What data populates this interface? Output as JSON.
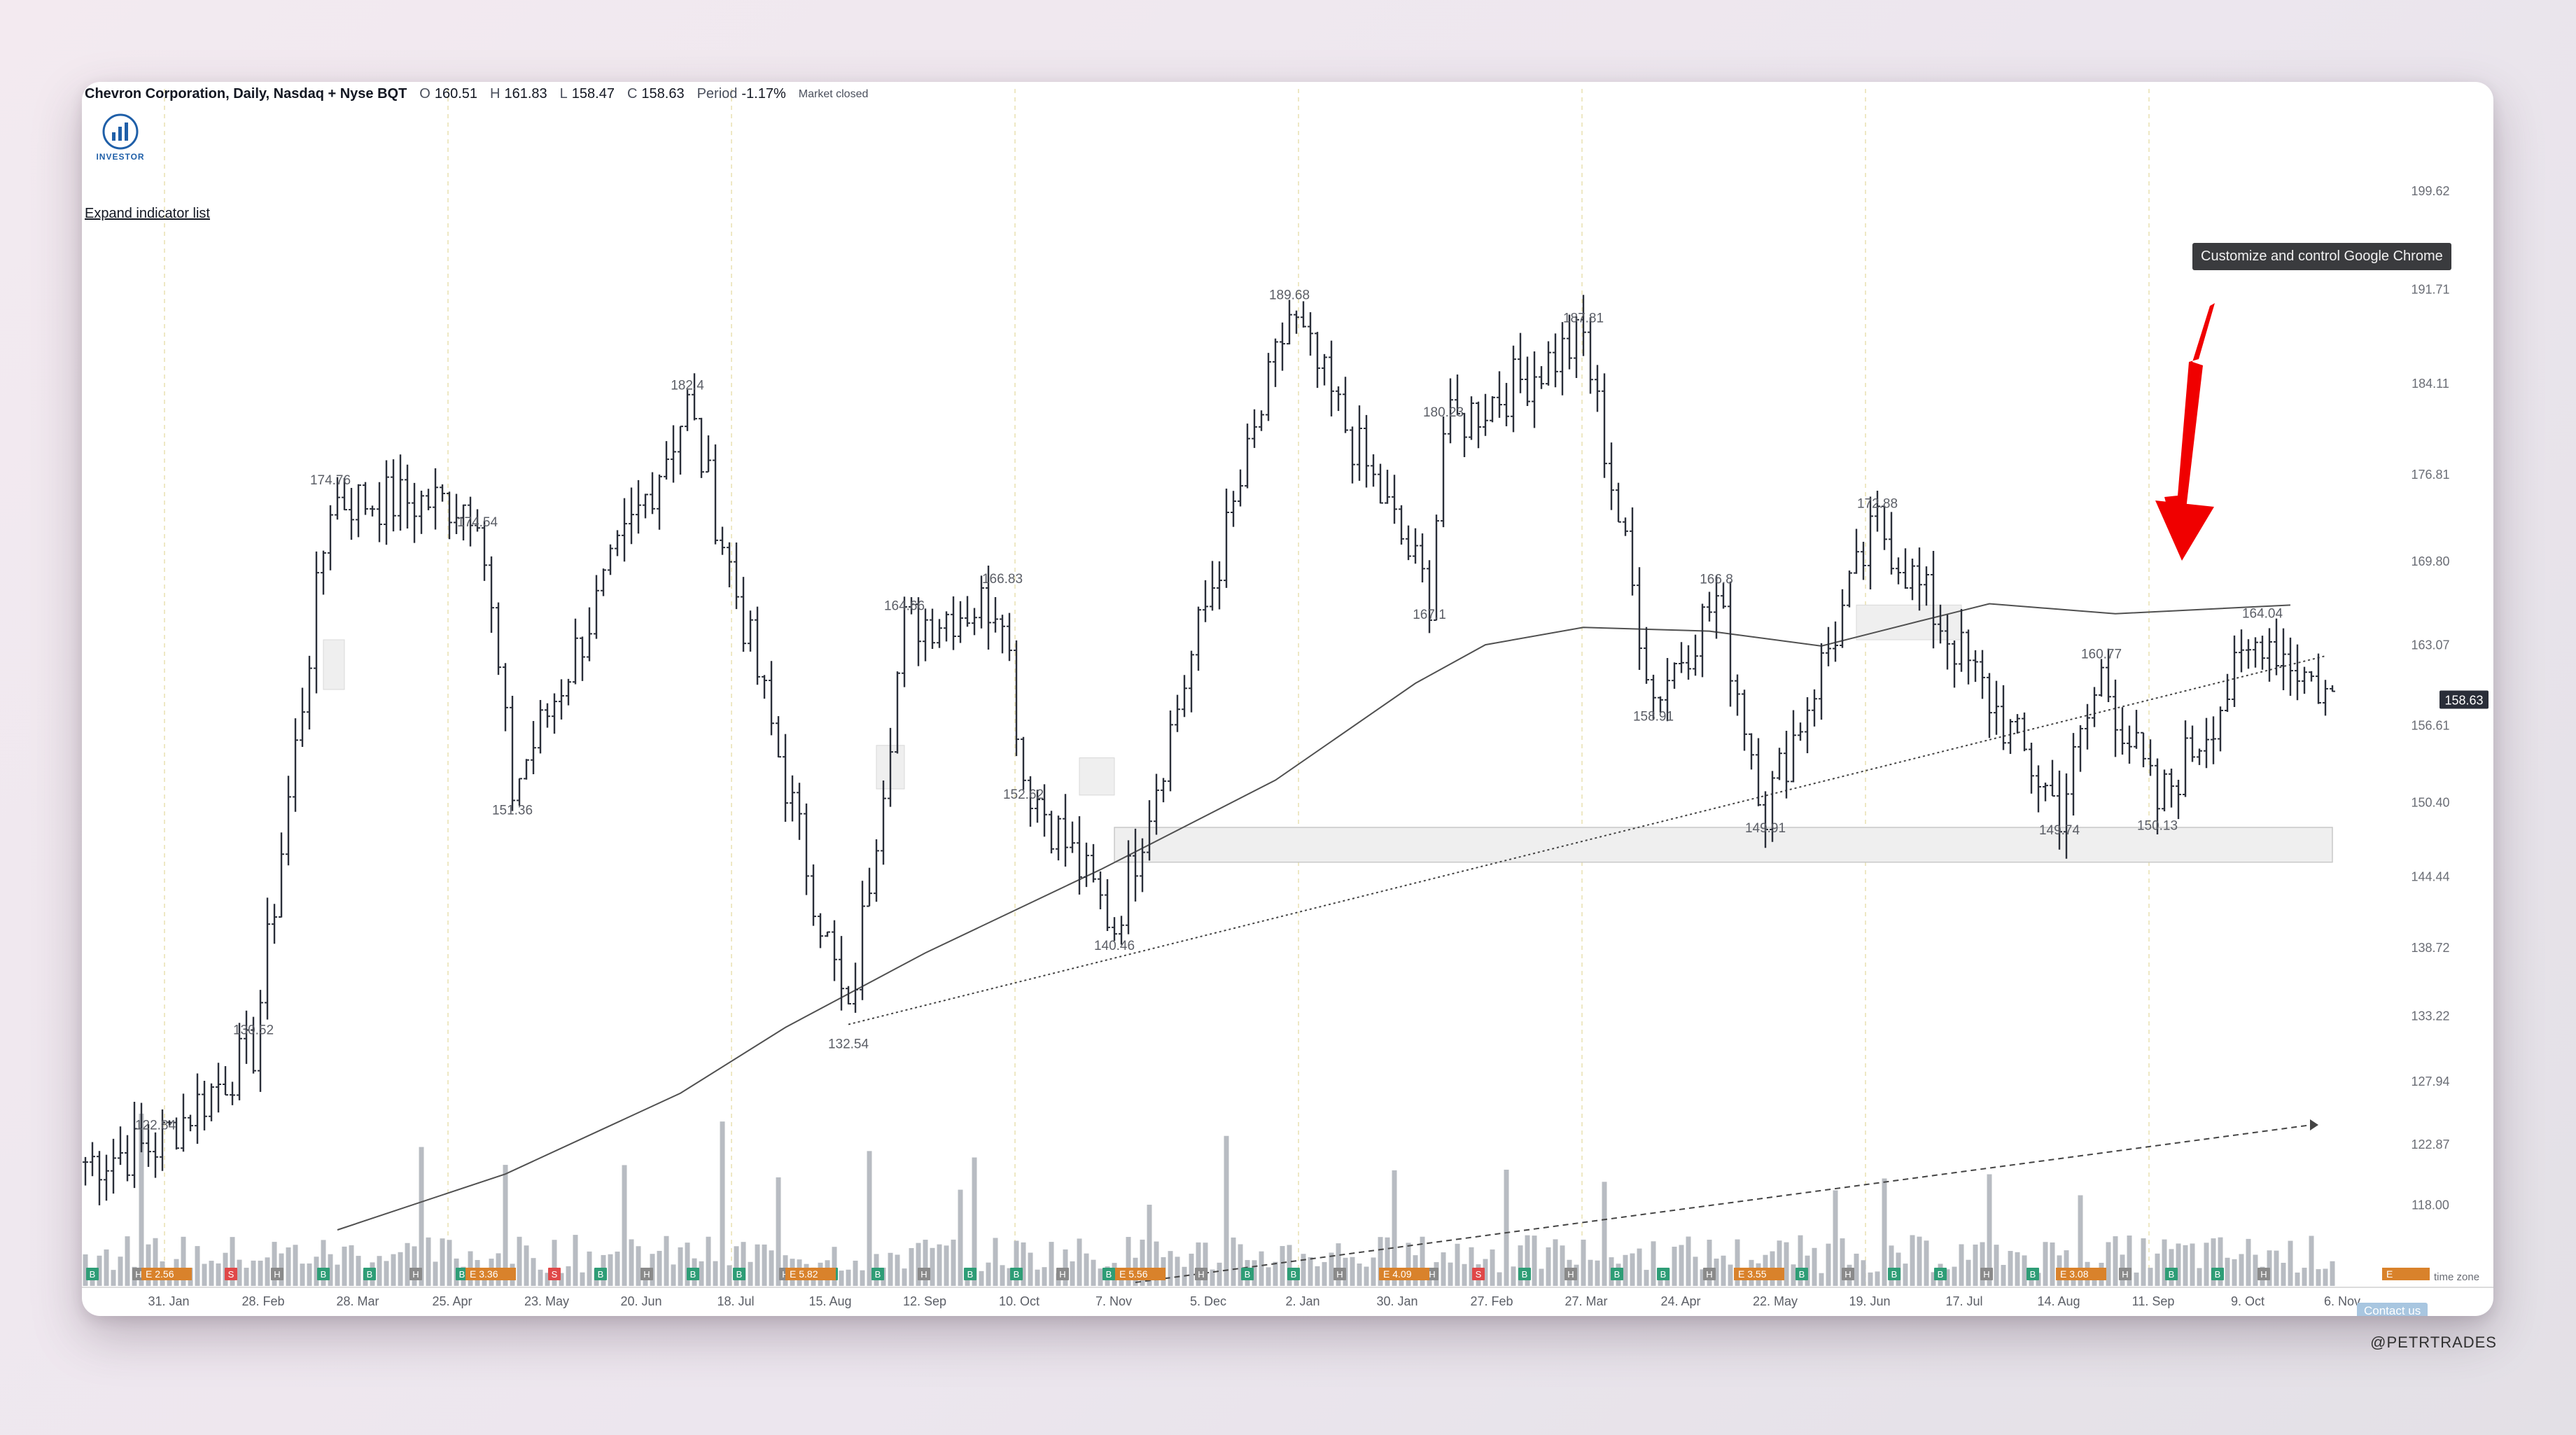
{
  "header": {
    "symbol": "Chevron Corporation, Daily, Nasdaq + Nyse BQT",
    "open_label": "O",
    "open": "160.51",
    "high_label": "H",
    "high": "161.83",
    "low_label": "L",
    "low": "158.47",
    "close_label": "C",
    "close": "158.63",
    "period_label": "Period",
    "period_change": "-1.17%",
    "market_status": "Market closed"
  },
  "logo_text": "INVESTOR",
  "expand_indicator_label": "Expand indicator list",
  "tooltip_text": "Customize and control Google Chrome",
  "contact_label": "Contact us",
  "watermark": "@PETRTRADES",
  "time_zone_label": "time zone",
  "colors": {
    "bar": "#2a2e39",
    "volume": "#b8bcc2",
    "ma_line": "#505050",
    "highlight_box": "#efefef",
    "arrow": "#f00000",
    "badge_h": "#8a8a8a",
    "badge_b": "#2e9d76",
    "badge_s": "#e04848",
    "badge_e": "#d9822b",
    "price_tag": "#2a2e39"
  },
  "chart_data": {
    "type": "ohlc",
    "title": "Chevron Corporation, Daily, Nasdaq + Nyse BQT",
    "ylim": [
      116.0,
      203.0
    ],
    "price_ticks": [
      "199.62",
      "191.71",
      "184.11",
      "176.81",
      "169.80",
      "163.07",
      "156.61",
      "150.40",
      "144.44",
      "138.72",
      "133.22",
      "127.94",
      "122.87",
      "118.00"
    ],
    "last_price": "158.63",
    "x_labels": [
      "31. Jan",
      "28. Feb",
      "28. Mar",
      "25. Apr",
      "23. May",
      "20. Jun",
      "18. Jul",
      "15. Aug",
      "12. Sep",
      "10. Oct",
      "7. Nov",
      "5. Dec",
      "2. Jan",
      "30. Jan",
      "27. Feb",
      "27. Mar",
      "24. Apr",
      "22. May",
      "19. Jun",
      "17. Jul",
      "14. Aug",
      "11. Sep",
      "9. Oct",
      "6. Nov"
    ],
    "swing_points": [
      {
        "index": 10,
        "value": 122.84
      },
      {
        "index": 24,
        "value": 130.52
      },
      {
        "index": 35,
        "value": 174.76
      },
      {
        "index": 61,
        "value": 151.36
      },
      {
        "index": 56,
        "value": 174.54
      },
      {
        "index": 86,
        "value": 182.4
      },
      {
        "index": 109,
        "value": 132.54
      },
      {
        "index": 117,
        "value": 164.66
      },
      {
        "index": 131,
        "value": 166.83
      },
      {
        "index": 134,
        "value": 152.62
      },
      {
        "index": 147,
        "value": 140.46
      },
      {
        "index": 172,
        "value": 189.68
      },
      {
        "index": 192,
        "value": 167.1
      },
      {
        "index": 194,
        "value": 180.23
      },
      {
        "index": 214,
        "value": 187.81
      },
      {
        "index": 224,
        "value": 158.91
      },
      {
        "index": 233,
        "value": 166.8
      },
      {
        "index": 240,
        "value": 149.91
      },
      {
        "index": 256,
        "value": 172.88
      },
      {
        "index": 282,
        "value": 149.74
      },
      {
        "index": 288,
        "value": 160.77
      },
      {
        "index": 296,
        "value": 150.13
      },
      {
        "index": 311,
        "value": 164.04
      }
    ],
    "moving_average": [
      {
        "index": 36,
        "value": 116.0
      },
      {
        "index": 60,
        "value": 120.5
      },
      {
        "index": 85,
        "value": 127.0
      },
      {
        "index": 100,
        "value": 132.3
      },
      {
        "index": 120,
        "value": 138.3
      },
      {
        "index": 145,
        "value": 145.0
      },
      {
        "index": 170,
        "value": 152.2
      },
      {
        "index": 190,
        "value": 160.0
      },
      {
        "index": 200,
        "value": 163.1
      },
      {
        "index": 214,
        "value": 164.5
      },
      {
        "index": 232,
        "value": 164.2
      },
      {
        "index": 248,
        "value": 163.0
      },
      {
        "index": 262,
        "value": 165.0
      },
      {
        "index": 272,
        "value": 166.4
      },
      {
        "index": 290,
        "value": 165.6
      },
      {
        "index": 315,
        "value": 166.3
      }
    ],
    "trendline": {
      "start": {
        "index": 109,
        "value": 132.54
      },
      "end": {
        "index": 320,
        "value": 162.2
      }
    },
    "support_zone": {
      "start_index": 147,
      "end_index": 321,
      "low": 145.6,
      "high": 148.4
    },
    "upper_shaded_zones": [
      {
        "start_index": 253,
        "end_index": 268,
        "low": 163.5,
        "high": 166.3
      },
      {
        "start_index": 142,
        "end_index": 147,
        "low": 151.0,
        "high": 154.0
      },
      {
        "start_index": 113,
        "end_index": 117,
        "low": 151.5,
        "high": 155.0
      },
      {
        "start_index": 34,
        "end_index": 37,
        "low": 159.5,
        "high": 163.5
      }
    ],
    "earnings": [
      "E 2.56",
      "E 3.36",
      "E 5.82",
      "E 5.56",
      "E 4.09",
      "E 3.55",
      "E 3.08",
      "E"
    ]
  }
}
